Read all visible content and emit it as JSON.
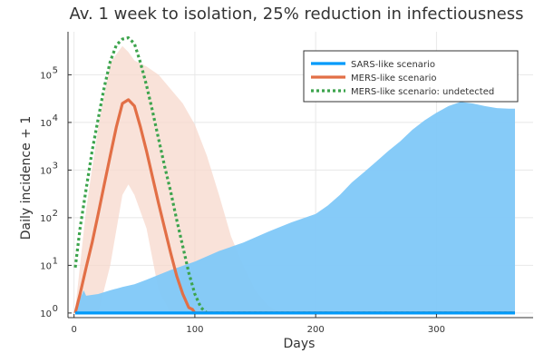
{
  "colors": {
    "sars": "#009AFA",
    "sars_band": "#7FC8F8",
    "mers": "#E26F46",
    "mers_band": "#F7D8CC",
    "undetected": "#3DA44D"
  },
  "chart_data": {
    "type": "line",
    "title": "Av. 1 week to isolation, 25% reduction in infectiousness",
    "xlabel": "Days",
    "ylabel": "Daily incidence + 1",
    "xlim": [
      -5,
      380
    ],
    "x_ticks": [
      0,
      100,
      200,
      300
    ],
    "x_tick_labels": [
      "0",
      "100",
      "200",
      "300"
    ],
    "y_scale": "log10",
    "ylim": [
      0.8,
      800000
    ],
    "y_ticks": [
      1,
      10,
      100,
      1000,
      10000,
      100000
    ],
    "y_tick_labels": [
      {
        "base": "10",
        "exp": "0"
      },
      {
        "base": "10",
        "exp": "1"
      },
      {
        "base": "10",
        "exp": "2"
      },
      {
        "base": "10",
        "exp": "3"
      },
      {
        "base": "10",
        "exp": "4"
      },
      {
        "base": "10",
        "exp": "5"
      }
    ],
    "grid": true,
    "legend_position": "top-right",
    "series": [
      {
        "name": "SARS-like scenario",
        "style": "solid",
        "x": [
          1,
          365
        ],
        "y": [
          1,
          1
        ],
        "band": {
          "x": [
            1,
            5,
            8,
            10,
            20,
            30,
            40,
            50,
            60,
            80,
            100,
            120,
            140,
            160,
            180,
            200,
            210,
            220,
            230,
            240,
            250,
            260,
            270,
            280,
            290,
            300,
            310,
            320,
            330,
            340,
            350,
            360,
            365
          ],
          "upper": [
            1,
            2,
            3,
            2.3,
            2.5,
            3,
            3.5,
            4,
            5,
            8,
            12,
            20,
            30,
            50,
            80,
            120,
            180,
            300,
            550,
            900,
            1500,
            2500,
            4000,
            7000,
            11000,
            16000,
            22000,
            27000,
            25000,
            22000,
            20000,
            19500,
            19500
          ],
          "lower": [
            1,
            1,
            1,
            1,
            1,
            1,
            1,
            1,
            1,
            1,
            1,
            1,
            1,
            1,
            1,
            1,
            1,
            1,
            1,
            1,
            1,
            1,
            1,
            1,
            1,
            1,
            1,
            1,
            1,
            1,
            1,
            1,
            1
          ]
        }
      },
      {
        "name": "MERS-like scenario",
        "style": "solid",
        "x": [
          1,
          5,
          10,
          15,
          20,
          25,
          30,
          35,
          40,
          45,
          50,
          55,
          60,
          65,
          70,
          75,
          80,
          85,
          90,
          95,
          98,
          100,
          365
        ],
        "y": [
          1,
          2.5,
          9,
          30,
          120,
          500,
          2000,
          8000,
          25000,
          30000,
          22000,
          8000,
          2500,
          700,
          200,
          60,
          18,
          6,
          2.5,
          1.3,
          1.2,
          1,
          1
        ],
        "band": {
          "x": [
            1,
            10,
            20,
            30,
            40,
            45,
            50,
            60,
            70,
            80,
            90,
            100,
            110,
            120,
            130,
            140,
            150,
            160,
            170
          ],
          "upper": [
            1.2,
            150,
            8000,
            180000,
            400000,
            300000,
            200000,
            150000,
            100000,
            50000,
            25000,
            9000,
            2000,
            300,
            40,
            10,
            3,
            1.5,
            1
          ],
          "lower": [
            1,
            1,
            1,
            10,
            300,
            500,
            300,
            60,
            3,
            1,
            1,
            1,
            1,
            1,
            1,
            1,
            1,
            1,
            1
          ]
        }
      },
      {
        "name": "MERS-like scenario: undetected",
        "style": "dotted",
        "x": [
          1,
          5,
          10,
          15,
          20,
          25,
          30,
          35,
          40,
          45,
          50,
          55,
          60,
          65,
          70,
          75,
          80,
          85,
          90,
          95,
          100,
          105,
          110,
          365
        ],
        "y": [
          9,
          60,
          400,
          2500,
          12000,
          55000,
          190000,
          420000,
          560000,
          600000,
          450000,
          180000,
          60000,
          17000,
          4500,
          1200,
          350,
          90,
          25,
          7,
          2.5,
          1.3,
          1,
          1
        ]
      }
    ]
  }
}
